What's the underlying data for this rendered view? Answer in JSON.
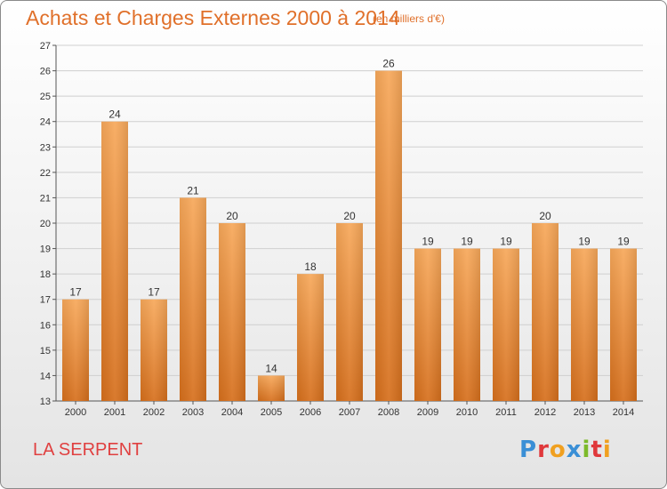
{
  "header": {
    "title": "Achats et Charges Externes 2000 à 2014",
    "subtitle": "(en milliers d'€)"
  },
  "footer": {
    "commune": "LA SERPENT",
    "logo_letters": [
      {
        "ch": "P",
        "color": "#3a8fd6"
      },
      {
        "ch": "r",
        "color": "#e0383b"
      },
      {
        "ch": "o",
        "color": "#f0a020"
      },
      {
        "ch": "x",
        "color": "#3a8fd6"
      },
      {
        "ch": "i",
        "color": "#7cba2a"
      },
      {
        "ch": "t",
        "color": "#e0383b"
      },
      {
        "ch": "i",
        "color": "#f0a020"
      }
    ]
  },
  "chart_data": {
    "type": "bar",
    "title": "Achats et Charges Externes 2000 à 2014",
    "subtitle": "(en milliers d'€)",
    "categories": [
      "2000",
      "2001",
      "2002",
      "2003",
      "2004",
      "2005",
      "2006",
      "2007",
      "2008",
      "2009",
      "2010",
      "2011",
      "2012",
      "2013",
      "2014"
    ],
    "values": [
      17,
      24,
      17,
      21,
      20,
      14,
      18,
      20,
      26,
      19,
      19,
      19,
      20,
      19,
      19
    ],
    "ylim": [
      13,
      27
    ],
    "yticks": [
      13,
      14,
      15,
      16,
      17,
      18,
      19,
      20,
      21,
      22,
      23,
      24,
      25,
      26,
      27
    ],
    "grid": true,
    "bar_color_light": "#f7a85a",
    "bar_color_dark": "#d66f1c"
  }
}
